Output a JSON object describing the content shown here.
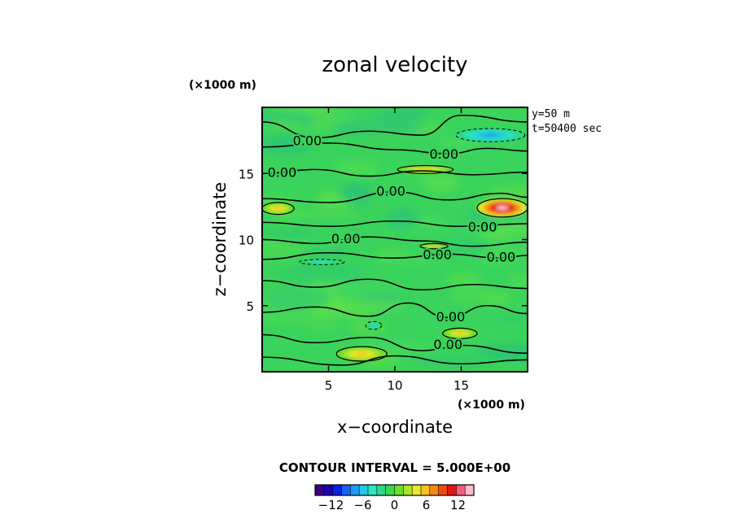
{
  "chart_data": {
    "type": "heatmap",
    "title": "zonal velocity",
    "xlabel": "x−coordinate",
    "ylabel": "z−coordinate",
    "x_multiplier": "(×1000 m)",
    "z_multiplier": "(×1000 m)",
    "xlim": [
      0,
      20
    ],
    "zlim": [
      0,
      20
    ],
    "x_ticks": [
      5,
      10,
      15
    ],
    "z_ticks": [
      5,
      10,
      15
    ],
    "info_lines": [
      "y=50  m",
      "t=50400 sec"
    ],
    "contour_interval_text": "CONTOUR INTERVAL = 5.000E+00",
    "contour_label": "0.00",
    "contour_labels": [
      {
        "x": 3.4,
        "z": 17.5
      },
      {
        "x": 13.7,
        "z": 16.5
      },
      {
        "x": 1.5,
        "z": 15.1
      },
      {
        "x": 9.7,
        "z": 13.7
      },
      {
        "x": 16.6,
        "z": 11.0
      },
      {
        "x": 6.3,
        "z": 10.1
      },
      {
        "x": 13.2,
        "z": 8.9
      },
      {
        "x": 18.0,
        "z": 8.7
      },
      {
        "x": 14.2,
        "z": 4.2
      },
      {
        "x": 14.0,
        "z": 2.1
      }
    ],
    "features": [
      {
        "kind": "positive",
        "x": [
          16.2,
          20.0
        ],
        "z": [
          11.7,
          13.1
        ],
        "peak": 14
      },
      {
        "kind": "positive",
        "x": [
          0.0,
          2.4
        ],
        "z": [
          11.9,
          12.8
        ],
        "peak": 5
      },
      {
        "kind": "positive",
        "x": [
          10.2,
          14.4
        ],
        "z": [
          15.0,
          15.6
        ],
        "peak": 5
      },
      {
        "kind": "positive",
        "x": [
          11.9,
          14.0
        ],
        "z": [
          9.3,
          9.7
        ],
        "peak": 5
      },
      {
        "kind": "positive",
        "x": [
          13.6,
          16.2
        ],
        "z": [
          2.5,
          3.3
        ],
        "peak": 5
      },
      {
        "kind": "positive",
        "x": [
          5.6,
          9.4
        ],
        "z": [
          0.8,
          1.9
        ],
        "peak": 6
      },
      {
        "kind": "negative",
        "x": [
          14.6,
          19.8
        ],
        "z": [
          17.4,
          18.4
        ],
        "peak": -7
      },
      {
        "kind": "negative",
        "x": [
          2.8,
          6.2
        ],
        "z": [
          8.1,
          8.5
        ],
        "peak": -5
      },
      {
        "kind": "negative",
        "x": [
          7.8,
          9.0
        ],
        "z": [
          3.2,
          3.8
        ],
        "peak": -6
      }
    ],
    "colorbar": {
      "min": -15,
      "max": 15,
      "tick_labels": [
        "−12",
        "−6",
        "0",
        "6",
        "12"
      ],
      "tick_values": [
        -12,
        -6,
        0,
        6,
        12
      ],
      "colors": [
        "#3b007f",
        "#1a00b4",
        "#0b1fe0",
        "#1561f5",
        "#1f9cf2",
        "#22c9e3",
        "#27e6c2",
        "#2ad88d",
        "#39d94f",
        "#6ddc2b",
        "#a9e52a",
        "#e5e82b",
        "#f6c11d",
        "#f58a12",
        "#f14a0d",
        "#e11610",
        "#f05e78",
        "#ffbacd"
      ]
    }
  }
}
